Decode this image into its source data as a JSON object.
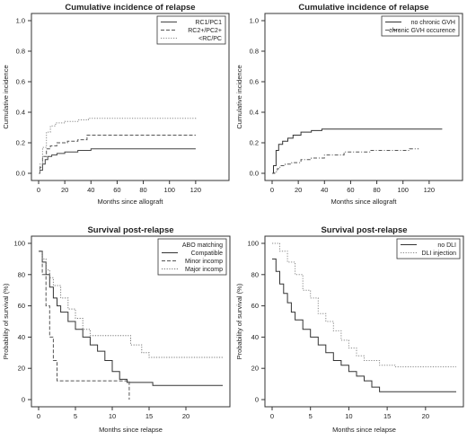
{
  "chart_data": [
    {
      "type": "line",
      "title": "Cumulative incidence of relapse",
      "xlabel": "Months since allograft",
      "ylabel": "Cumulative incidence",
      "xlim": [
        0,
        140
      ],
      "ylim": [
        0,
        1.0
      ],
      "xticks": [
        0,
        20,
        40,
        60,
        80,
        100,
        120
      ],
      "yticks": [
        0.0,
        0.2,
        0.4,
        0.6,
        0.8,
        1.0
      ],
      "legend_position": "top-right",
      "series": [
        {
          "name": "RC1/PC1",
          "style": "solid",
          "color": "#444444",
          "points": [
            [
              0,
              0
            ],
            [
              1,
              0.02
            ],
            [
              3,
              0.06
            ],
            [
              5,
              0.09
            ],
            [
              7,
              0.11
            ],
            [
              10,
              0.12
            ],
            [
              14,
              0.13
            ],
            [
              20,
              0.14
            ],
            [
              30,
              0.15
            ],
            [
              40,
              0.16
            ],
            [
              120,
              0.16
            ]
          ]
        },
        {
          "name": "RC2+/PC2+",
          "style": "dashed",
          "color": "#555555",
          "points": [
            [
              0,
              0
            ],
            [
              1,
              0.04
            ],
            [
              3,
              0.11
            ],
            [
              6,
              0.16
            ],
            [
              9,
              0.18
            ],
            [
              14,
              0.2
            ],
            [
              22,
              0.21
            ],
            [
              30,
              0.22
            ],
            [
              37,
              0.25
            ],
            [
              120,
              0.25
            ]
          ]
        },
        {
          "name": "<RC/PC",
          "style": "dotted",
          "color": "#888888",
          "points": [
            [
              0,
              0
            ],
            [
              1,
              0.06
            ],
            [
              3,
              0.17
            ],
            [
              6,
              0.27
            ],
            [
              9,
              0.31
            ],
            [
              13,
              0.33
            ],
            [
              20,
              0.34
            ],
            [
              30,
              0.35
            ],
            [
              38,
              0.36
            ],
            [
              110,
              0.36
            ],
            [
              120,
              0.37
            ]
          ]
        }
      ]
    },
    {
      "type": "line",
      "title": "Cumulative incidence of relapse",
      "xlabel": "Months since allograft",
      "ylabel": "Cumulative incidence",
      "xlim": [
        0,
        140
      ],
      "ylim": [
        0,
        1.0
      ],
      "xticks": [
        0,
        20,
        40,
        60,
        80,
        100,
        120
      ],
      "yticks": [
        0.0,
        0.2,
        0.4,
        0.6,
        0.8,
        1.0
      ],
      "legend_position": "top-right",
      "series": [
        {
          "name": "no chronic GVH",
          "style": "solid",
          "color": "#333333",
          "points": [
            [
              0,
              0
            ],
            [
              1,
              0.05
            ],
            [
              3,
              0.15
            ],
            [
              5,
              0.19
            ],
            [
              8,
              0.21
            ],
            [
              12,
              0.23
            ],
            [
              16,
              0.25
            ],
            [
              22,
              0.27
            ],
            [
              30,
              0.28
            ],
            [
              38,
              0.29
            ],
            [
              130,
              0.29
            ]
          ]
        },
        {
          "name": "chronic GVH occurence",
          "style": "dashdot",
          "color": "#555555",
          "points": [
            [
              0,
              0
            ],
            [
              2,
              0.01
            ],
            [
              4,
              0.03
            ],
            [
              6,
              0.05
            ],
            [
              10,
              0.06
            ],
            [
              15,
              0.07
            ],
            [
              22,
              0.09
            ],
            [
              30,
              0.1
            ],
            [
              40,
              0.12
            ],
            [
              55,
              0.14
            ],
            [
              75,
              0.15
            ],
            [
              90,
              0.15
            ],
            [
              105,
              0.16
            ],
            [
              112,
              0.16
            ]
          ]
        }
      ]
    },
    {
      "type": "line",
      "title": "Survival post-relapse",
      "xlabel": "Months since relapse",
      "ylabel": "Probability of survival (%)",
      "xlim": [
        0,
        25
      ],
      "ylim": [
        0,
        100
      ],
      "xticks": [
        0,
        5,
        10,
        15,
        20
      ],
      "yticks": [
        0,
        20,
        40,
        60,
        80,
        100
      ],
      "legend_position": "top-right",
      "legend_title": "ABO matching",
      "series": [
        {
          "name": "Compatible",
          "style": "solid",
          "color": "#333333",
          "points": [
            [
              0,
              95
            ],
            [
              0.5,
              88
            ],
            [
              1,
              80
            ],
            [
              1.5,
              72
            ],
            [
              2,
              65
            ],
            [
              2.5,
              60
            ],
            [
              3,
              56
            ],
            [
              4,
              50
            ],
            [
              5,
              45
            ],
            [
              6,
              40
            ],
            [
              7,
              35
            ],
            [
              8,
              31
            ],
            [
              9,
              25
            ],
            [
              10,
              18
            ],
            [
              11,
              13
            ],
            [
              12,
              11
            ],
            [
              14,
              11
            ],
            [
              15.5,
              9
            ],
            [
              25,
              9
            ]
          ]
        },
        {
          "name": "Minor incomp",
          "style": "dashed",
          "color": "#555555",
          "points": [
            [
              0,
              95
            ],
            [
              0.5,
              80
            ],
            [
              1,
              60
            ],
            [
              1.5,
              40
            ],
            [
              2,
              25
            ],
            [
              2.5,
              12
            ],
            [
              12,
              12
            ],
            [
              12.3,
              0
            ]
          ]
        },
        {
          "name": "Major incomp",
          "style": "dotted",
          "color": "#777777",
          "points": [
            [
              0,
              95
            ],
            [
              0.5,
              90
            ],
            [
              1,
              83
            ],
            [
              1.5,
              78
            ],
            [
              2,
              73
            ],
            [
              3,
              65
            ],
            [
              4,
              58
            ],
            [
              5,
              52
            ],
            [
              6,
              45
            ],
            [
              7,
              41
            ],
            [
              12,
              41
            ],
            [
              12.5,
              35
            ],
            [
              14,
              30
            ],
            [
              15,
              27
            ],
            [
              25,
              27
            ]
          ]
        }
      ]
    },
    {
      "type": "line",
      "title": "Survival post-relapse",
      "xlabel": "Months since relapse",
      "ylabel": "Probability of survival (%)",
      "xlim": [
        0,
        24
      ],
      "ylim": [
        0,
        100
      ],
      "xticks": [
        0,
        5,
        10,
        15,
        20
      ],
      "yticks": [
        0,
        20,
        40,
        60,
        80,
        100
      ],
      "legend_position": "top-right",
      "series": [
        {
          "name": "no DLI",
          "style": "solid",
          "color": "#333333",
          "points": [
            [
              0,
              90
            ],
            [
              0.5,
              82
            ],
            [
              1,
              74
            ],
            [
              1.5,
              68
            ],
            [
              2,
              62
            ],
            [
              2.5,
              56
            ],
            [
              3,
              51
            ],
            [
              4,
              45
            ],
            [
              5,
              40
            ],
            [
              6,
              35
            ],
            [
              7,
              30
            ],
            [
              8,
              25
            ],
            [
              9,
              22
            ],
            [
              10,
              18
            ],
            [
              11,
              15
            ],
            [
              12,
              12
            ],
            [
              13,
              8
            ],
            [
              14,
              5
            ],
            [
              24,
              5
            ]
          ]
        },
        {
          "name": "DLI injection",
          "style": "dotted",
          "color": "#888888",
          "points": [
            [
              0,
              100
            ],
            [
              1,
              95
            ],
            [
              2,
              88
            ],
            [
              3,
              80
            ],
            [
              4,
              70
            ],
            [
              5,
              65
            ],
            [
              6,
              55
            ],
            [
              7,
              50
            ],
            [
              8,
              44
            ],
            [
              9,
              38
            ],
            [
              10,
              33
            ],
            [
              11,
              28
            ],
            [
              12,
              25
            ],
            [
              14,
              22
            ],
            [
              16,
              21
            ],
            [
              24,
              21
            ]
          ]
        }
      ]
    }
  ]
}
